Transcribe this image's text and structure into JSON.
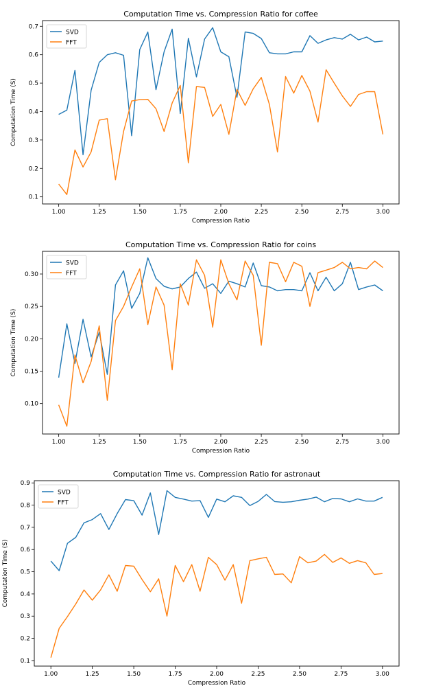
{
  "colors": {
    "svd": "#1f77b4",
    "fft": "#ff7f0e",
    "axis": "#000000",
    "background": "#ffffff"
  },
  "chart_data": [
    {
      "type": "line",
      "title": "Computation Time vs. Compression Ratio for coffee",
      "xlabel": "Compression Ratio",
      "ylabel": "Computation Time (S)",
      "grid": false,
      "legend": "top-left",
      "xlim": [
        0.9,
        3.1
      ],
      "ylim": [
        0.075,
        0.72
      ],
      "xticks": [
        "1.00",
        "1.25",
        "1.50",
        "1.75",
        "2.00",
        "2.25",
        "2.50",
        "2.75",
        "3.00"
      ],
      "yticks": [
        "0.1",
        "0.2",
        "0.3",
        "0.4",
        "0.5",
        "0.6",
        "0.7"
      ],
      "x": [
        1.0,
        1.05,
        1.1,
        1.15,
        1.2,
        1.25,
        1.3,
        1.35,
        1.4,
        1.45,
        1.5,
        1.55,
        1.6,
        1.65,
        1.7,
        1.75,
        1.8,
        1.85,
        1.9,
        1.95,
        2.0,
        2.05,
        2.1,
        2.15,
        2.2,
        2.25,
        2.3,
        2.35,
        2.4,
        2.45,
        2.5,
        2.55,
        2.6,
        2.65,
        2.7,
        2.75,
        2.8,
        2.85,
        2.9,
        2.95,
        3.0
      ],
      "series": [
        {
          "name": "SVD",
          "values": [
            0.39,
            0.405,
            0.545,
            0.248,
            0.475,
            0.573,
            0.6,
            0.607,
            0.598,
            0.315,
            0.618,
            0.68,
            0.477,
            0.61,
            0.69,
            0.393,
            0.658,
            0.522,
            0.655,
            0.695,
            0.61,
            0.593,
            0.45,
            0.68,
            0.675,
            0.657,
            0.607,
            0.603,
            0.603,
            0.61,
            0.61,
            0.667,
            0.64,
            0.652,
            0.66,
            0.655,
            0.672,
            0.652,
            0.662,
            0.645,
            0.648
          ]
        },
        {
          "name": "FFT",
          "values": [
            0.145,
            0.108,
            0.265,
            0.205,
            0.258,
            0.37,
            0.375,
            0.16,
            0.33,
            0.437,
            0.442,
            0.443,
            0.41,
            0.33,
            0.43,
            0.492,
            0.22,
            0.488,
            0.485,
            0.383,
            0.425,
            0.32,
            0.478,
            0.422,
            0.48,
            0.52,
            0.425,
            0.258,
            0.523,
            0.465,
            0.527,
            0.472,
            0.363,
            0.547,
            0.5,
            0.455,
            0.418,
            0.46,
            0.47,
            0.47,
            0.32
          ]
        }
      ]
    },
    {
      "type": "line",
      "title": "Computation Time vs. Compression Ratio for coins",
      "xlabel": "Compression Ratio",
      "ylabel": "Computation Time (S)",
      "grid": false,
      "legend": "top-left",
      "xlim": [
        0.9,
        3.1
      ],
      "ylim": [
        0.053,
        0.335
      ],
      "xticks": [
        "1.00",
        "1.25",
        "1.50",
        "1.75",
        "2.00",
        "2.25",
        "2.50",
        "2.75",
        "3.00"
      ],
      "yticks": [
        "0.10",
        "0.15",
        "0.20",
        "0.25",
        "0.30"
      ],
      "x": [
        1.0,
        1.05,
        1.1,
        1.15,
        1.2,
        1.25,
        1.3,
        1.35,
        1.4,
        1.45,
        1.5,
        1.55,
        1.6,
        1.65,
        1.7,
        1.75,
        1.8,
        1.85,
        1.9,
        1.95,
        2.0,
        2.05,
        2.1,
        2.15,
        2.2,
        2.25,
        2.3,
        2.35,
        2.4,
        2.45,
        2.5,
        2.55,
        2.6,
        2.65,
        2.7,
        2.75,
        2.8,
        2.85,
        2.9,
        2.95,
        3.0
      ],
      "series": [
        {
          "name": "SVD",
          "values": [
            0.14,
            0.223,
            0.162,
            0.23,
            0.172,
            0.21,
            0.145,
            0.283,
            0.305,
            0.247,
            0.27,
            0.325,
            0.293,
            0.281,
            0.277,
            0.28,
            0.293,
            0.303,
            0.278,
            0.285,
            0.27,
            0.289,
            0.285,
            0.28,
            0.317,
            0.282,
            0.28,
            0.274,
            0.276,
            0.276,
            0.274,
            0.302,
            0.274,
            0.295,
            0.274,
            0.285,
            0.318,
            0.276,
            0.28,
            0.283,
            0.274
          ]
        },
        {
          "name": "FFT",
          "values": [
            0.098,
            0.065,
            0.175,
            0.132,
            0.165,
            0.22,
            0.105,
            0.228,
            0.25,
            0.28,
            0.308,
            0.222,
            0.28,
            0.252,
            0.152,
            0.285,
            0.252,
            0.322,
            0.298,
            0.218,
            0.322,
            0.285,
            0.26,
            0.32,
            0.298,
            0.19,
            0.318,
            0.316,
            0.288,
            0.318,
            0.312,
            0.25,
            0.302,
            0.306,
            0.31,
            0.318,
            0.308,
            0.31,
            0.308,
            0.32,
            0.31
          ]
        }
      ]
    },
    {
      "type": "line",
      "title": "Computation Time vs. Compression Ratio for astronaut",
      "xlabel": "Compression Ratio",
      "ylabel": "Computation Time (S)",
      "grid": false,
      "legend": "top-left",
      "xlim": [
        0.9,
        3.1
      ],
      "ylim": [
        0.075,
        0.91
      ],
      "xticks": [
        "1.00",
        "1.25",
        "1.50",
        "1.75",
        "2.00",
        "2.25",
        "2.50",
        "2.75",
        "3.00"
      ],
      "yticks": [
        "0.1",
        "0.2",
        "0.3",
        "0.4",
        "0.5",
        "0.6",
        "0.7",
        "0.8",
        "0.9"
      ],
      "x": [
        1.0,
        1.05,
        1.1,
        1.15,
        1.2,
        1.25,
        1.3,
        1.35,
        1.4,
        1.45,
        1.5,
        1.55,
        1.6,
        1.65,
        1.7,
        1.75,
        1.8,
        1.85,
        1.9,
        1.95,
        2.0,
        2.05,
        2.1,
        2.15,
        2.2,
        2.25,
        2.3,
        2.35,
        2.4,
        2.45,
        2.5,
        2.55,
        2.6,
        2.65,
        2.7,
        2.75,
        2.8,
        2.85,
        2.9,
        2.95,
        3.0
      ],
      "series": [
        {
          "name": "SVD",
          "values": [
            0.548,
            0.505,
            0.628,
            0.655,
            0.72,
            0.735,
            0.762,
            0.69,
            0.762,
            0.825,
            0.82,
            0.755,
            0.855,
            0.668,
            0.865,
            0.835,
            0.827,
            0.818,
            0.82,
            0.745,
            0.827,
            0.815,
            0.842,
            0.835,
            0.798,
            0.817,
            0.848,
            0.816,
            0.813,
            0.815,
            0.822,
            0.827,
            0.836,
            0.815,
            0.83,
            0.828,
            0.815,
            0.828,
            0.818,
            0.818,
            0.835
          ]
        },
        {
          "name": "FFT",
          "values": [
            0.113,
            0.245,
            0.298,
            0.355,
            0.418,
            0.372,
            0.418,
            0.486,
            0.412,
            0.528,
            0.525,
            0.465,
            0.41,
            0.468,
            0.3,
            0.528,
            0.455,
            0.532,
            0.412,
            0.565,
            0.532,
            0.462,
            0.532,
            0.358,
            0.55,
            0.558,
            0.565,
            0.488,
            0.49,
            0.45,
            0.568,
            0.54,
            0.548,
            0.578,
            0.542,
            0.562,
            0.538,
            0.55,
            0.54,
            0.488,
            0.492
          ]
        }
      ]
    }
  ]
}
